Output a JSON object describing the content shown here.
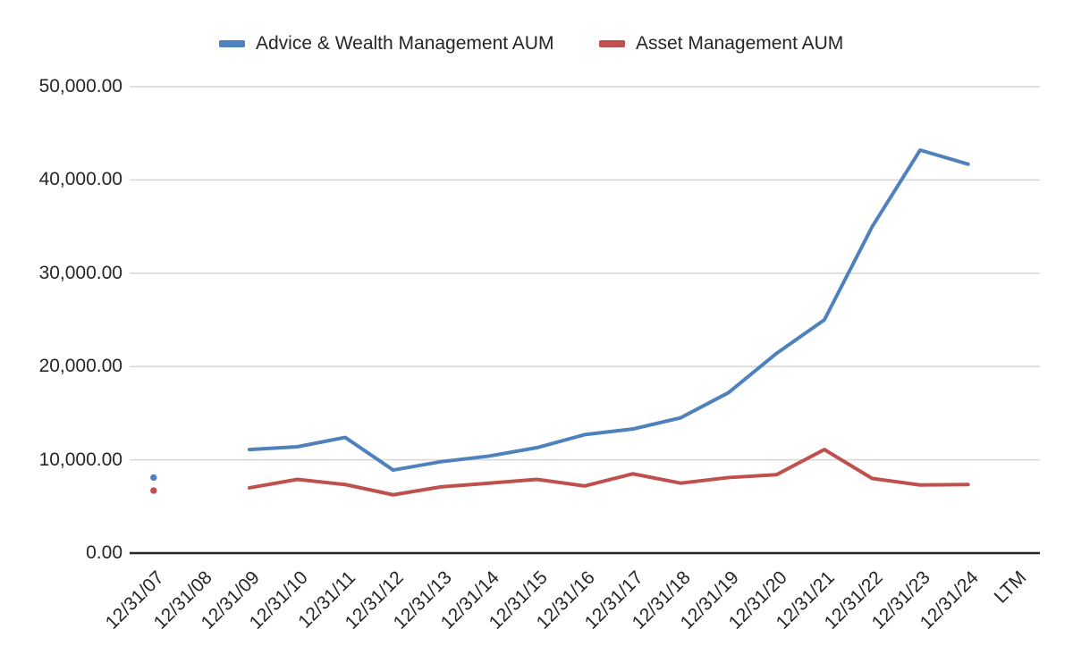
{
  "chart_data": {
    "type": "line",
    "title": "",
    "xlabel": "",
    "ylabel": "",
    "categories": [
      "12/31/07",
      "12/31/08",
      "12/31/09",
      "12/31/10",
      "12/31/11",
      "12/31/12",
      "12/31/13",
      "12/31/14",
      "12/31/15",
      "12/31/16",
      "12/31/17",
      "12/31/18",
      "12/31/19",
      "12/31/20",
      "12/31/21",
      "12/31/22",
      "12/31/23",
      "12/31/24",
      "LTM"
    ],
    "series": [
      {
        "name": "Advice & Wealth Management AUM",
        "color": "#4F81BD",
        "values": [
          8100,
          null,
          11100,
          11400,
          12400,
          8900,
          9800,
          10400,
          11300,
          12700,
          13300,
          14500,
          17200,
          21400,
          25000,
          35000,
          43200,
          41700,
          null
        ]
      },
      {
        "name": "Asset Management AUM",
        "color": "#C0504D",
        "values": [
          6700,
          null,
          7000,
          7900,
          7350,
          6250,
          7100,
          7500,
          7900,
          7200,
          8500,
          7500,
          8100,
          8400,
          11100,
          8000,
          7300,
          7350,
          null
        ]
      }
    ],
    "ylim": [
      0,
      50000
    ],
    "y_tick_interval": 10000,
    "y_tick_labels": [
      "0.00",
      "10,000.00",
      "20,000.00",
      "30,000.00",
      "40,000.00",
      "50,000.00"
    ],
    "grid": "horizontal",
    "legend_position": "top-center"
  },
  "colors": {
    "background": "#FFFFFF",
    "gridline": "#D6D6D6",
    "axis_line": "#262626",
    "text": "#262626",
    "series_blue": "#4F81BD",
    "series_red": "#C0504D"
  }
}
